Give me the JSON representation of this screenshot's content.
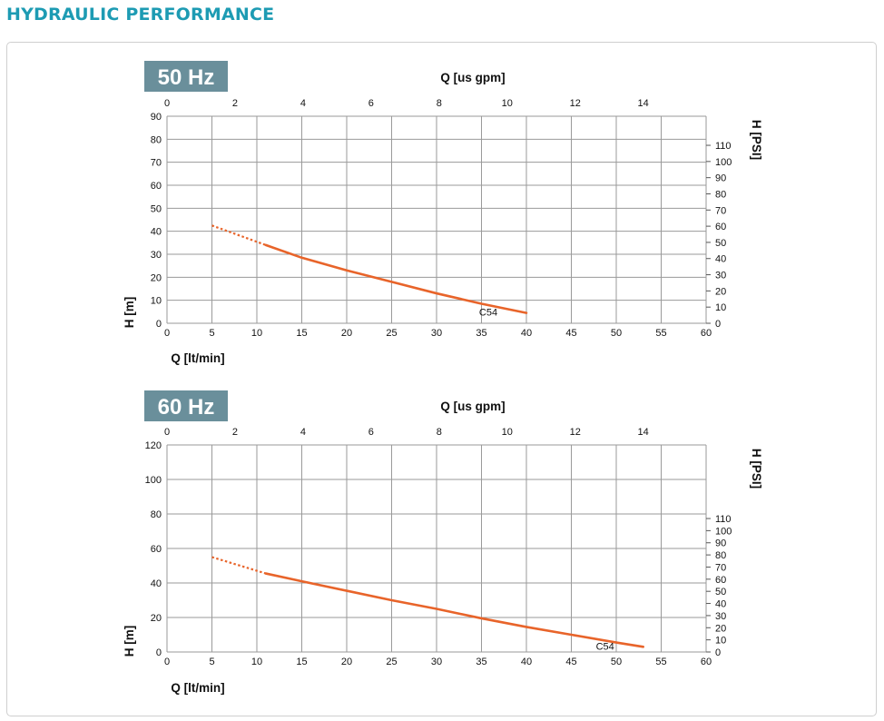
{
  "page": {
    "title": "HYDRAULIC PERFORMANCE"
  },
  "colors": {
    "title": "#1d9bb3",
    "badge": "#6a8f9b",
    "curve": "#e8642a",
    "grid": "#9a9a9a"
  },
  "chart_data": [
    {
      "type": "line",
      "badge": "50 Hz",
      "xlabel": "Q [lt/min]",
      "x2label": "Q [us gpm]",
      "ylabel": "H [m]",
      "y2label": "H [PSI]",
      "xlim": [
        0,
        60
      ],
      "ylim": [
        0,
        90
      ],
      "x_ticks": [
        0,
        5,
        10,
        15,
        20,
        25,
        30,
        35,
        40,
        45,
        50,
        55,
        60
      ],
      "y_ticks": [
        0,
        10,
        20,
        30,
        40,
        50,
        60,
        70,
        80,
        90
      ],
      "x2_ticks": [
        0,
        2,
        4,
        6,
        8,
        10,
        12,
        14
      ],
      "y2_ticks": [
        0,
        10,
        20,
        30,
        40,
        50,
        60,
        70,
        80,
        90,
        100,
        110
      ],
      "grid": true,
      "series": [
        {
          "name": "C54",
          "dashed_x": [
            5,
            11
          ],
          "x": [
            5,
            11,
            15,
            20,
            25,
            30,
            35,
            40
          ],
          "y": [
            42.5,
            34,
            28.5,
            23,
            18,
            13,
            8.5,
            4.5
          ]
        }
      ]
    },
    {
      "type": "line",
      "badge": "60 Hz",
      "xlabel": "Q [lt/min]",
      "x2label": "Q [us gpm]",
      "ylabel": "H [m]",
      "y2label": "H [PSI]",
      "xlim": [
        0,
        60
      ],
      "ylim": [
        0,
        120
      ],
      "x_ticks": [
        0,
        5,
        10,
        15,
        20,
        25,
        30,
        35,
        40,
        45,
        50,
        55,
        60
      ],
      "y_ticks": [
        0,
        20,
        40,
        60,
        80,
        100,
        120
      ],
      "x2_ticks": [
        0,
        2,
        4,
        6,
        8,
        10,
        12,
        14
      ],
      "y2_ticks": [
        0,
        10,
        20,
        30,
        40,
        50,
        60,
        70,
        80,
        90,
        100,
        110
      ],
      "grid": true,
      "series": [
        {
          "name": "C54",
          "dashed_x": [
            5,
            11
          ],
          "x": [
            5,
            11,
            15,
            20,
            25,
            30,
            35,
            40,
            45,
            50,
            53
          ],
          "y": [
            55,
            45.5,
            41,
            35.5,
            30,
            25,
            19.5,
            14.5,
            10,
            5.5,
            3
          ]
        }
      ]
    }
  ]
}
